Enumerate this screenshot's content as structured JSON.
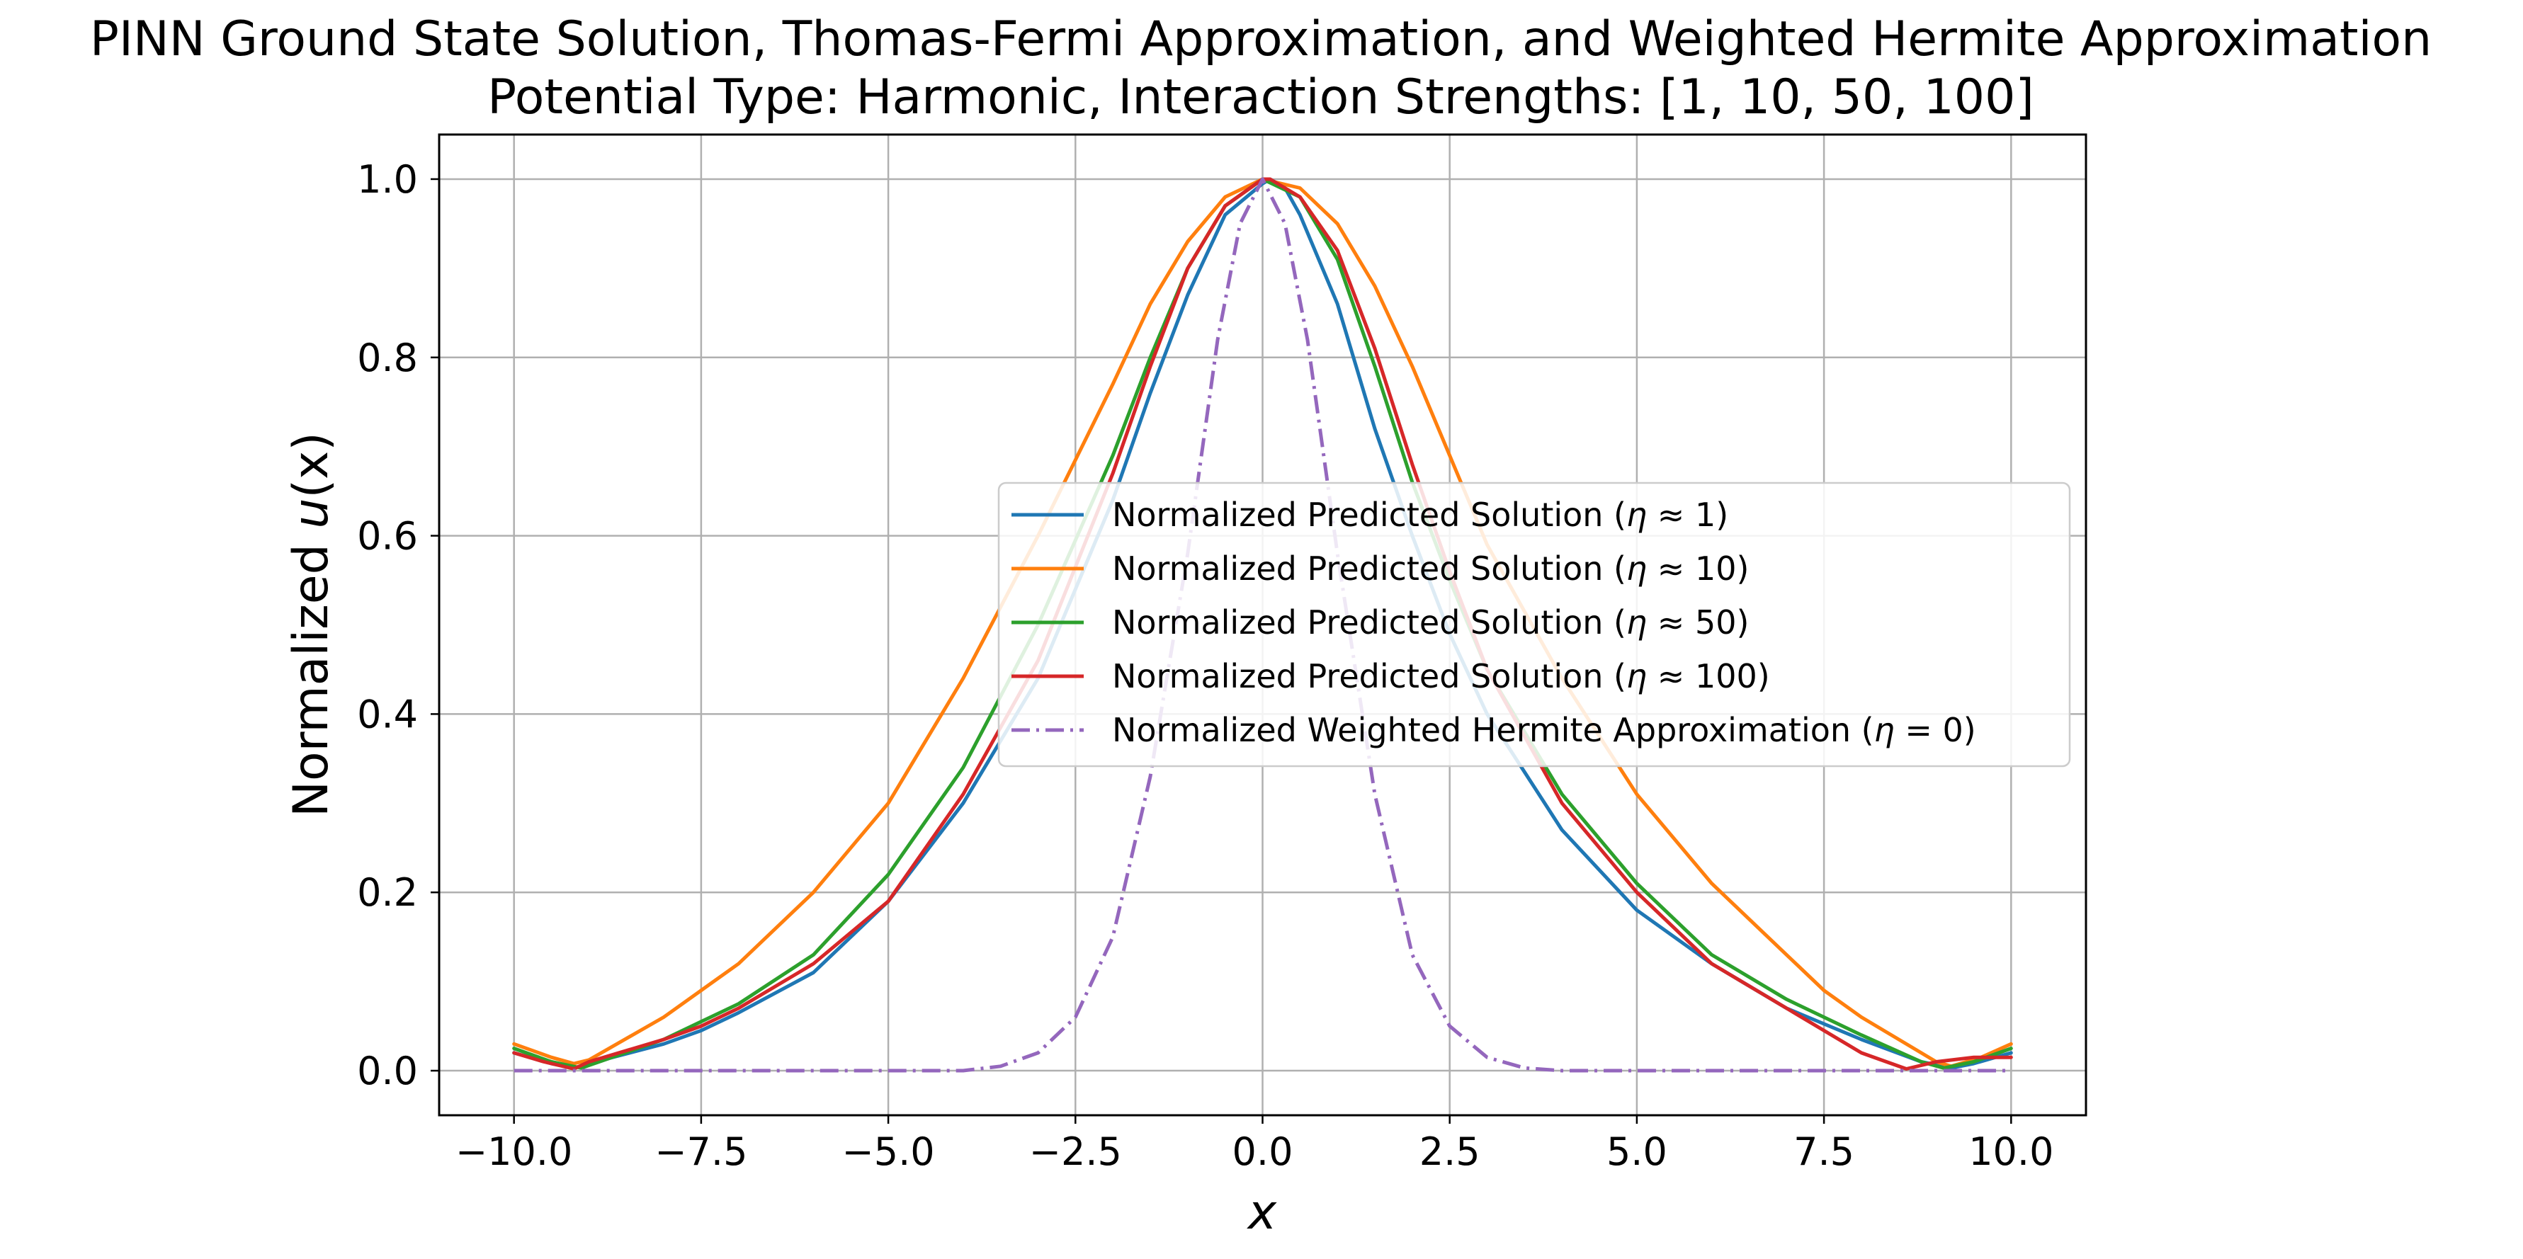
{
  "chart_data": {
    "type": "line",
    "title": "PINN Ground State Solution, Thomas-Fermi Approximation, and Weighted Hermite Approximation",
    "subtitle": "Potential Type: Harmonic, Interaction Strengths: [1, 10, 50, 100]",
    "xlabel": "x",
    "ylabel_prefix": "Normalized ",
    "ylabel_var": "u",
    "ylabel_paren": "(x)",
    "xlim": [
      -11,
      11
    ],
    "ylim": [
      -0.05,
      1.05
    ],
    "xticks": [
      -10.0,
      -7.5,
      -5.0,
      -2.5,
      0.0,
      2.5,
      5.0,
      7.5,
      10.0
    ],
    "xtick_labels": [
      "−10.0",
      "−7.5",
      "−5.0",
      "−2.5",
      "0.0",
      "2.5",
      "5.0",
      "7.5",
      "10.0"
    ],
    "yticks": [
      0.0,
      0.2,
      0.4,
      0.6,
      0.8,
      1.0
    ],
    "ytick_labels": [
      "0.0",
      "0.2",
      "0.4",
      "0.6",
      "0.8",
      "1.0"
    ],
    "grid": true,
    "legend_position": "center-right",
    "series": [
      {
        "name": "Normalized Predicted Solution (η ≈ 1)",
        "label_pre": "Normalized Predicted Solution (",
        "label_rel": " ≈ 1)",
        "color": "#1f77b4",
        "style": "solid",
        "points": [
          [
            -10,
            0.02
          ],
          [
            -9.5,
            0.008
          ],
          [
            -9.2,
            0.003
          ],
          [
            -9,
            0.008
          ],
          [
            -8,
            0.03
          ],
          [
            -7.5,
            0.045
          ],
          [
            -7,
            0.065
          ],
          [
            -6,
            0.11
          ],
          [
            -5,
            0.19
          ],
          [
            -4,
            0.3
          ],
          [
            -3,
            0.44
          ],
          [
            -2,
            0.64
          ],
          [
            -1.5,
            0.76
          ],
          [
            -1,
            0.87
          ],
          [
            -0.5,
            0.96
          ],
          [
            0,
            0.995
          ],
          [
            0.1,
            1.0
          ],
          [
            0.3,
            0.99
          ],
          [
            0.5,
            0.96
          ],
          [
            1,
            0.86
          ],
          [
            1.5,
            0.72
          ],
          [
            2,
            0.6
          ],
          [
            2.5,
            0.49
          ],
          [
            3,
            0.4
          ],
          [
            4,
            0.27
          ],
          [
            5,
            0.18
          ],
          [
            6,
            0.12
          ],
          [
            7,
            0.07
          ],
          [
            8,
            0.035
          ],
          [
            8.8,
            0.01
          ],
          [
            9.2,
            0.003
          ],
          [
            9.5,
            0.008
          ],
          [
            10,
            0.02
          ]
        ]
      },
      {
        "name": "Normalized Predicted Solution (η ≈ 10)",
        "label_pre": "Normalized Predicted Solution (",
        "label_rel": " ≈ 10)",
        "color": "#ff7f0e",
        "style": "solid",
        "points": [
          [
            -10,
            0.03
          ],
          [
            -9.5,
            0.015
          ],
          [
            -9.2,
            0.008
          ],
          [
            -9,
            0.012
          ],
          [
            -8,
            0.06
          ],
          [
            -7.5,
            0.09
          ],
          [
            -7,
            0.12
          ],
          [
            -6,
            0.2
          ],
          [
            -5,
            0.3
          ],
          [
            -4,
            0.44
          ],
          [
            -3,
            0.6
          ],
          [
            -2,
            0.77
          ],
          [
            -1.5,
            0.86
          ],
          [
            -1,
            0.93
          ],
          [
            -0.5,
            0.98
          ],
          [
            0,
            1.0
          ],
          [
            0.5,
            0.99
          ],
          [
            1,
            0.95
          ],
          [
            1.5,
            0.88
          ],
          [
            2,
            0.79
          ],
          [
            2.5,
            0.69
          ],
          [
            3,
            0.59
          ],
          [
            4,
            0.44
          ],
          [
            5,
            0.31
          ],
          [
            6,
            0.21
          ],
          [
            7,
            0.13
          ],
          [
            7.5,
            0.09
          ],
          [
            8,
            0.06
          ],
          [
            9,
            0.01
          ],
          [
            9.2,
            0.005
          ],
          [
            9.6,
            0.015
          ],
          [
            10,
            0.03
          ]
        ]
      },
      {
        "name": "Normalized Predicted Solution (η ≈ 50)",
        "label_pre": "Normalized Predicted Solution (",
        "label_rel": " ≈ 50)",
        "color": "#2ca02c",
        "style": "solid",
        "points": [
          [
            -10,
            0.025
          ],
          [
            -9.5,
            0.01
          ],
          [
            -9.1,
            0.003
          ],
          [
            -9,
            0.006
          ],
          [
            -8,
            0.035
          ],
          [
            -7.5,
            0.055
          ],
          [
            -7,
            0.075
          ],
          [
            -6,
            0.13
          ],
          [
            -5,
            0.22
          ],
          [
            -4,
            0.34
          ],
          [
            -3,
            0.5
          ],
          [
            -2,
            0.69
          ],
          [
            -1.5,
            0.8
          ],
          [
            -1,
            0.9
          ],
          [
            -0.5,
            0.97
          ],
          [
            0,
            1.0
          ],
          [
            0.5,
            0.98
          ],
          [
            1,
            0.91
          ],
          [
            1.5,
            0.79
          ],
          [
            2,
            0.66
          ],
          [
            2.5,
            0.55
          ],
          [
            3,
            0.45
          ],
          [
            4,
            0.31
          ],
          [
            5,
            0.21
          ],
          [
            6,
            0.13
          ],
          [
            7,
            0.08
          ],
          [
            8,
            0.04
          ],
          [
            8.8,
            0.01
          ],
          [
            9.1,
            0.003
          ],
          [
            9.5,
            0.01
          ],
          [
            10,
            0.025
          ]
        ]
      },
      {
        "name": "Normalized Predicted Solution (η ≈ 100)",
        "label_pre": "Normalized Predicted Solution (",
        "label_rel": " ≈ 100)",
        "color": "#d62728",
        "style": "solid",
        "points": [
          [
            -10,
            0.02
          ],
          [
            -9.6,
            0.01
          ],
          [
            -9.2,
            0.002
          ],
          [
            -9,
            0.01
          ],
          [
            -8,
            0.035
          ],
          [
            -7.5,
            0.05
          ],
          [
            -7,
            0.07
          ],
          [
            -6,
            0.12
          ],
          [
            -5,
            0.19
          ],
          [
            -4,
            0.31
          ],
          [
            -3,
            0.46
          ],
          [
            -2,
            0.67
          ],
          [
            -1.5,
            0.79
          ],
          [
            -1,
            0.9
          ],
          [
            -0.5,
            0.97
          ],
          [
            0,
            1.0
          ],
          [
            0.1,
            1.0
          ],
          [
            0.5,
            0.98
          ],
          [
            1,
            0.92
          ],
          [
            1.5,
            0.81
          ],
          [
            2,
            0.68
          ],
          [
            2.5,
            0.56
          ],
          [
            3,
            0.45
          ],
          [
            4,
            0.3
          ],
          [
            5,
            0.2
          ],
          [
            6,
            0.12
          ],
          [
            7,
            0.07
          ],
          [
            8,
            0.02
          ],
          [
            8.6,
            0.002
          ],
          [
            9,
            0.01
          ],
          [
            9.5,
            0.015
          ],
          [
            10,
            0.015
          ]
        ]
      },
      {
        "name": "Normalized Weighted Hermite Approximation (η = 0)",
        "label_pre": "Normalized Weighted Hermite Approximation (",
        "label_rel": " = 0)",
        "color": "#9467bd",
        "style": "dashdot",
        "points": [
          [
            -10,
            0.0
          ],
          [
            -4.5,
            0.0
          ],
          [
            -4,
            0.0
          ],
          [
            -3.5,
            0.005
          ],
          [
            -3,
            0.02
          ],
          [
            -2.5,
            0.06
          ],
          [
            -2,
            0.15
          ],
          [
            -1.5,
            0.33
          ],
          [
            -1,
            0.58
          ],
          [
            -0.6,
            0.82
          ],
          [
            -0.3,
            0.95
          ],
          [
            0,
            1.0
          ],
          [
            0.3,
            0.95
          ],
          [
            0.6,
            0.82
          ],
          [
            1,
            0.58
          ],
          [
            1.5,
            0.31
          ],
          [
            2,
            0.13
          ],
          [
            2.5,
            0.05
          ],
          [
            3,
            0.015
          ],
          [
            3.5,
            0.003
          ],
          [
            4,
            0.0
          ],
          [
            10,
            0.0
          ]
        ]
      }
    ]
  }
}
